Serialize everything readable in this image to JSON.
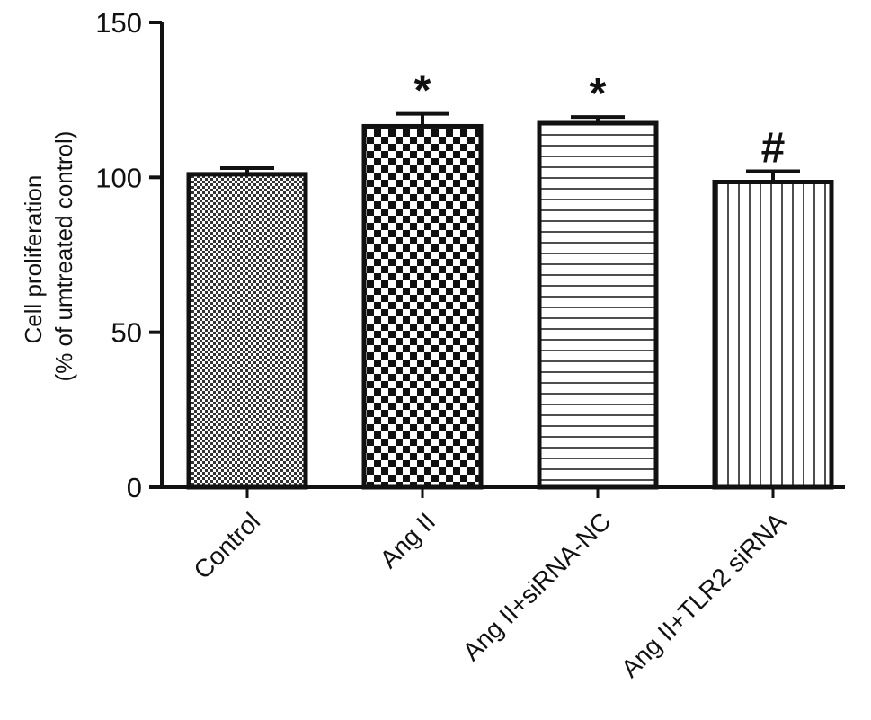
{
  "chart_data": {
    "type": "bar",
    "title": "",
    "xlabel": "",
    "ylabel_lines": [
      "Cell proliferation",
      "(% of umtreated control)"
    ],
    "categories": [
      "Control",
      "Ang II",
      "Ang II+siRNA-NC",
      "Ang II+TLR2 siRNA"
    ],
    "values": [
      101,
      116.5,
      117.5,
      98.5
    ],
    "errors": [
      2,
      4,
      2,
      3.5
    ],
    "annotations": [
      "",
      "*",
      "*",
      "#"
    ],
    "patterns": [
      "fine-checker",
      "checker",
      "horizontal-lines",
      "vertical-lines"
    ],
    "ylim": [
      0,
      150
    ],
    "yticks": [
      0,
      50,
      100,
      150
    ],
    "grid": false,
    "colors": {
      "ink": "#111111",
      "background": "#ffffff"
    }
  }
}
